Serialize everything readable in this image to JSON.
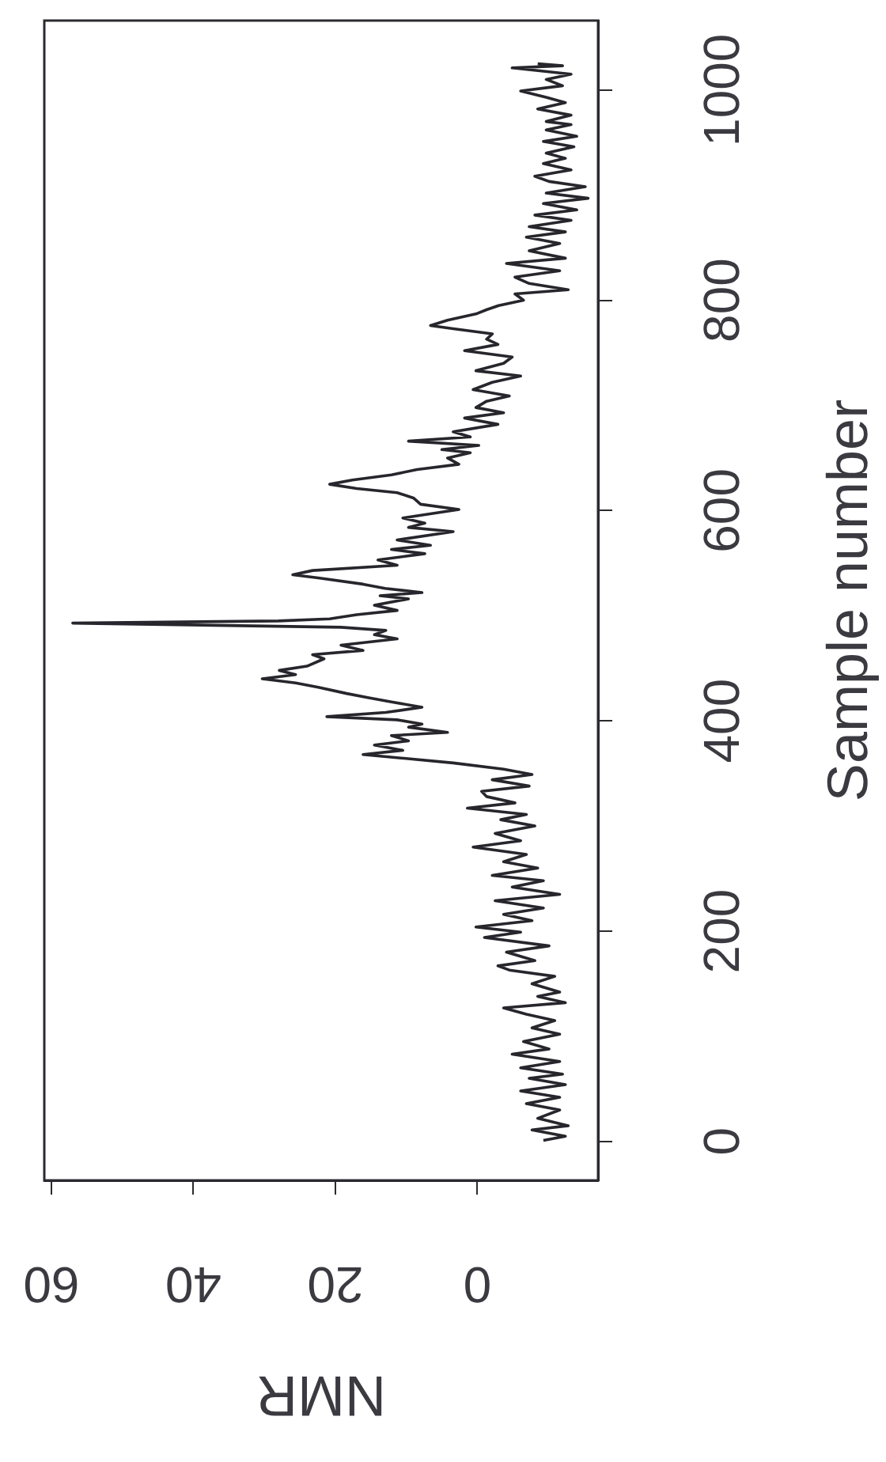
{
  "chart_data": {
    "type": "line",
    "xlabel": "NMR",
    "ylabel": "Sample number",
    "x": [
      -9.3,
      -12.4,
      -7.7,
      -12.8,
      -8.5,
      -11.6,
      -6.9,
      -11.6,
      -6.1,
      -12.4,
      -7.3,
      -12.0,
      -6.1,
      -11.6,
      -4.9,
      -10.1,
      -6.5,
      -11.6,
      -7.7,
      -10.9,
      -6.9,
      -3.7,
      -12.4,
      -8.5,
      -11.6,
      -7.7,
      -10.9,
      -4.5,
      -2.9,
      -8.1,
      -4.1,
      -10.1,
      -1.0,
      -6.1,
      0.2,
      -7.7,
      -3.7,
      -9.3,
      -2.5,
      -11.6,
      -4.9,
      -9.3,
      -2.1,
      -8.5,
      -3.7,
      -6.9,
      0.6,
      -6.1,
      -2.5,
      -8.1,
      -3.3,
      -6.9,
      1.4,
      -5.3,
      -1.3,
      -0.6,
      -7.3,
      -2.1,
      -7.7,
      -3.7,
      3.4,
      16.1,
      10.5,
      14.5,
      9.7,
      12.1,
      4.2,
      9.7,
      7.8,
      11.3,
      21.2,
      12.9,
      7.8,
      12.1,
      15.3,
      18.4,
      22.4,
      25.6,
      30.3,
      25.6,
      27.9,
      24.0,
      21.6,
      23.2,
      16.1,
      19.2,
      11.3,
      14.5,
      12.9,
      19.2,
      57.0,
      28.0,
      20.8,
      17.0,
      11.3,
      14.5,
      9.7,
      13.7,
      7.8,
      13.0,
      16.1,
      22.4,
      26.0,
      23.2,
      11.3,
      14.0,
      7.4,
      12.1,
      6.6,
      11.3,
      3.4,
      9.7,
      7.4,
      10.5,
      2.6,
      8.0,
      9.0,
      11.3,
      17.0,
      20.8,
      17.6,
      12.1,
      8.5,
      2.6,
      4.2,
      1.0,
      5.0,
      -0.2,
      9.7,
      1.0,
      3.4,
      -2.9,
      1.8,
      -3.7,
      0.2,
      -1.3,
      -4.5,
      0.6,
      -2.1,
      -6.1,
      0.2,
      -3.7,
      -4.9,
      1.8,
      -2.9,
      -1.3,
      -2.1,
      3.4,
      6.6,
      4.2,
      0.2,
      -1.3,
      -3.0,
      -6.5,
      -5.3,
      -12.8,
      -7.3,
      -5.3,
      -11.6,
      -4.1,
      -12.4,
      -7.3,
      -11.6,
      -6.9,
      -12.4,
      -7.3,
      -13.2,
      -8.1,
      -14.0,
      -9.3,
      -15.6,
      -9.7,
      -15.2,
      -10.1,
      -8.1,
      -13.2,
      -9.3,
      -12.4,
      -9.7,
      -13.6,
      -9.3,
      -14.0,
      -9.7,
      -13.2,
      -9.7,
      -13.2,
      -8.5,
      -12.4,
      -9.7,
      -6.1,
      -12.0,
      -9.7,
      -13.2,
      -4.9,
      -12.0,
      -8.5
    ],
    "series": [
      {
        "color": "#26262c",
        "values": [
          1,
          5,
          11,
          15,
          22,
          30,
          36,
          42,
          48,
          54,
          60,
          64,
          70,
          76,
          83,
          88,
          95,
          102,
          108,
          115,
          121,
          127,
          132,
          138,
          142,
          150,
          157,
          163,
          167,
          172,
          180,
          186,
          194,
          199,
          204,
          210,
          216,
          222,
          229,
          235,
          242,
          248,
          253,
          260,
          266,
          273,
          280,
          286,
          293,
          300,
          306,
          311,
          317,
          322,
          328,
          333,
          338,
          344,
          349,
          354,
          360,
          368,
          372,
          377,
          381,
          386,
          389,
          394,
          397,
          401,
          404,
          408,
          413,
          418,
          422,
          426,
          432,
          436,
          440,
          444,
          448,
          452,
          459,
          463,
          467,
          472,
          478,
          482,
          486,
          489,
          493,
          495,
          497,
          501,
          505,
          510,
          516,
          519,
          522,
          526,
          530,
          536,
          539,
          543,
          548,
          553,
          559,
          563,
          567,
          572,
          580,
          584,
          588,
          593,
          601,
          606,
          612,
          617,
          621,
          625,
          629,
          634,
          639,
          644,
          650,
          655,
          658,
          662,
          666,
          670,
          675,
          682,
          688,
          693,
          698,
          704,
          709,
          715,
          722,
          728,
          733,
          740,
          746,
          752,
          758,
          763,
          768,
          773,
          776,
          781,
          787,
          791,
          795,
          800,
          806,
          810,
          816,
          822,
          828,
          835,
          840,
          847,
          854,
          860,
          865,
          870,
          876,
          881,
          886,
          892,
          897,
          902,
          908,
          913,
          918,
          924,
          930,
          935,
          940,
          946,
          951,
          956,
          962,
          967,
          970,
          976,
          982,
          988,
          993,
          999,
          1004,
          1010,
          1015,
          1021,
          1023,
          1025
        ]
      }
    ],
    "xlim": [
      61,
      -17
    ],
    "ylim": [
      -37,
      1066
    ],
    "xticks": [
      0,
      20,
      40,
      60
    ],
    "yticks": [
      0,
      200,
      400,
      600,
      800,
      1000
    ],
    "line_style": "solid"
  }
}
